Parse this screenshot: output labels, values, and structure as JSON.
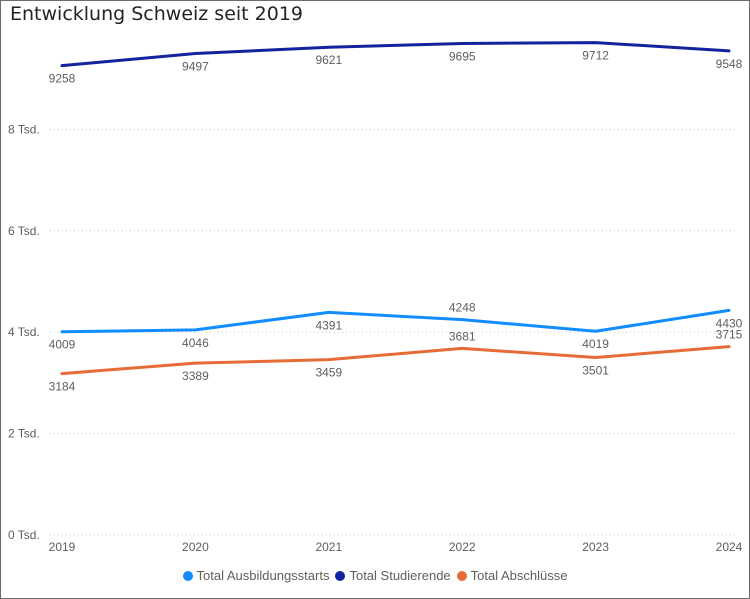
{
  "chart_data": {
    "type": "line",
    "title": "Entwicklung Schweiz seit 2019",
    "xlabel": "",
    "ylabel": "",
    "categories": [
      "2019",
      "2020",
      "2021",
      "2022",
      "2023",
      "2024"
    ],
    "y_ticks": [
      {
        "value": 0,
        "label": "0 Tsd."
      },
      {
        "value": 2000,
        "label": "2 Tsd."
      },
      {
        "value": 4000,
        "label": "4 Tsd."
      },
      {
        "value": 6000,
        "label": "6 Tsd."
      },
      {
        "value": 8000,
        "label": "8 Tsd."
      }
    ],
    "ylim": [
      0,
      10000
    ],
    "grid": true,
    "legend_position": "bottom-center",
    "series": [
      {
        "name": "Total Ausbildungsstarts",
        "color": "#118dff",
        "values": [
          4009,
          4046,
          4391,
          4248,
          4019,
          4430
        ],
        "label_pos": [
          "below",
          "below",
          "below",
          "above",
          "below",
          "below"
        ]
      },
      {
        "name": "Total Studierende",
        "color": "#12239e",
        "values": [
          9258,
          9497,
          9621,
          9695,
          9712,
          9548
        ],
        "label_pos": [
          "below",
          "below",
          "below",
          "below",
          "below",
          "below"
        ]
      },
      {
        "name": "Total Abschlüsse",
        "color": "#e66c37",
        "values": [
          3184,
          3389,
          3459,
          3681,
          3501,
          3715
        ],
        "label_pos": [
          "below",
          "below",
          "below",
          "above",
          "below",
          "above"
        ]
      }
    ]
  }
}
